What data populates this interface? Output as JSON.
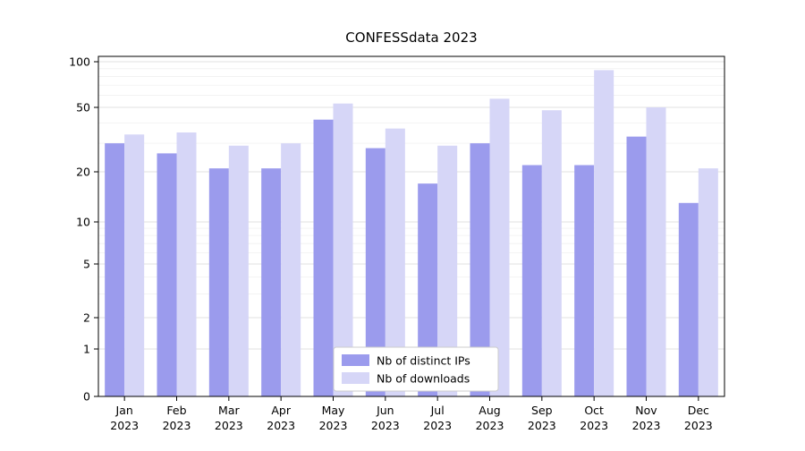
{
  "chart_data": {
    "type": "bar",
    "title": "CONFESSdata 2023",
    "categories": [
      "Jan",
      "Feb",
      "Mar",
      "Apr",
      "May",
      "Jun",
      "Jul",
      "Aug",
      "Sep",
      "Oct",
      "Nov",
      "Dec"
    ],
    "year_label": "2023",
    "series": [
      {
        "name": "Nb of distinct IPs",
        "color": "#9b9bed",
        "values": [
          30,
          26,
          21,
          21,
          42,
          28,
          17,
          30,
          22,
          22,
          33,
          13
        ]
      },
      {
        "name": "Nb of downloads",
        "color": "#d6d6f7",
        "values": [
          34,
          35,
          29,
          30,
          53,
          37,
          29,
          57,
          48,
          88,
          50,
          21
        ]
      }
    ],
    "yscale": "symlog",
    "yticks": [
      0,
      1,
      2,
      5,
      10,
      20,
      50,
      100
    ],
    "ylim": [
      0,
      100
    ],
    "grid": "horizontal",
    "legend_position": "lower center"
  }
}
